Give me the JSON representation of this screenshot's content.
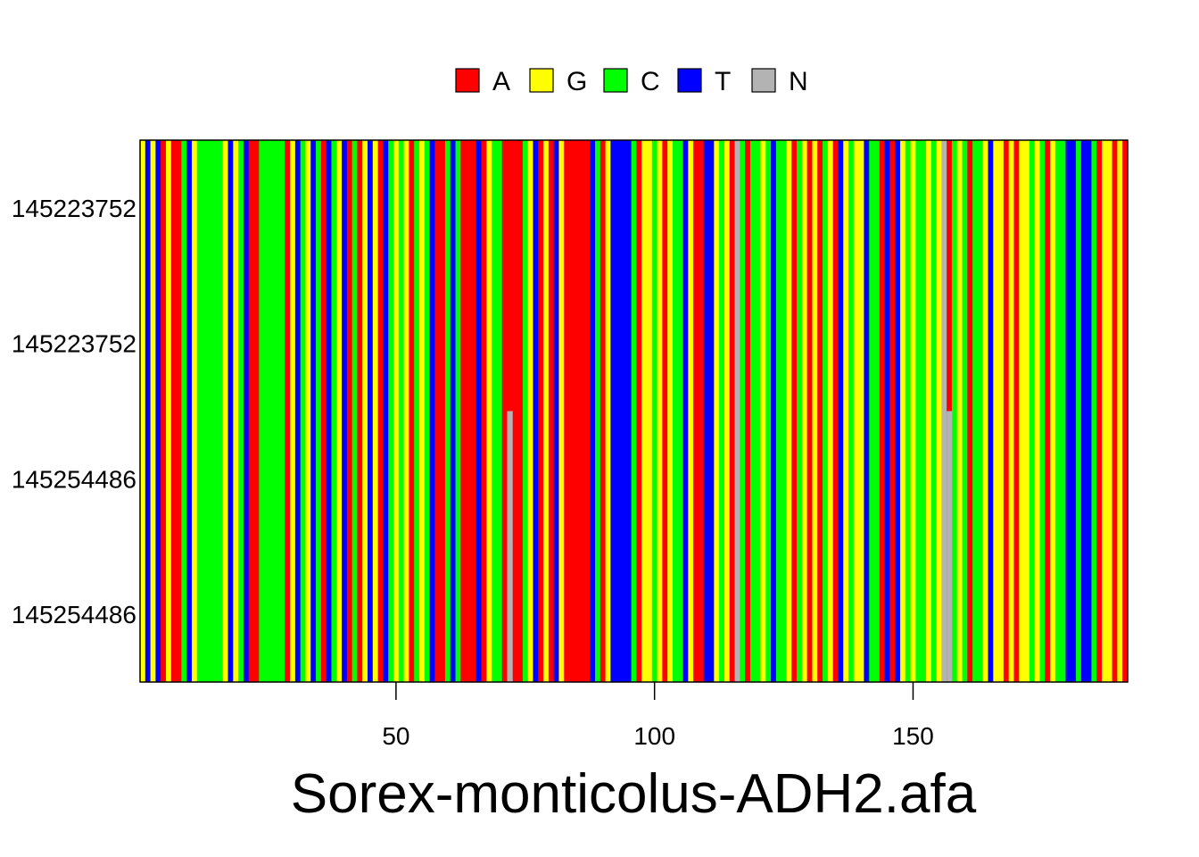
{
  "chart_data": {
    "type": "heatmap",
    "title": "Sorex-monticolus-ADH2.afa",
    "xlabel": "",
    "ylabel": "",
    "xlim": [
      1,
      193
    ],
    "x_ticks": [
      50,
      100,
      150
    ],
    "row_labels": [
      "145223752",
      "145223752",
      "145254486",
      "145254486"
    ],
    "legend": {
      "placement": "top",
      "entries": [
        {
          "label": "A",
          "color": "#ff0000"
        },
        {
          "label": "G",
          "color": "#ffff00"
        },
        {
          "label": "C",
          "color": "#00ff00"
        },
        {
          "label": "T",
          "color": "#0000ff"
        },
        {
          "label": "N",
          "color": "#b3b3b3"
        }
      ]
    },
    "columns": "GTGTAGAACTGCCCCCGTGCTAACCCCCAGTCGTCATCGTACAGTGATCGCGACGCTAACTCAAATAGCCAAAACGTAGATGAAAAATCAGTTTTCAGGCGAGCCTGAATTGCGANCACCGCTCCGACGAGACGATGCGGTCCATATGCGCCGCGNACGCACCGTGGAGAGGCGCAGCCTTCTTCAGGAGA",
    "variations": [
      {
        "position": 72,
        "rows": [
          3,
          4
        ],
        "base": "N"
      },
      {
        "position": 157,
        "rows": [
          3,
          4
        ],
        "base": "N"
      }
    ]
  }
}
